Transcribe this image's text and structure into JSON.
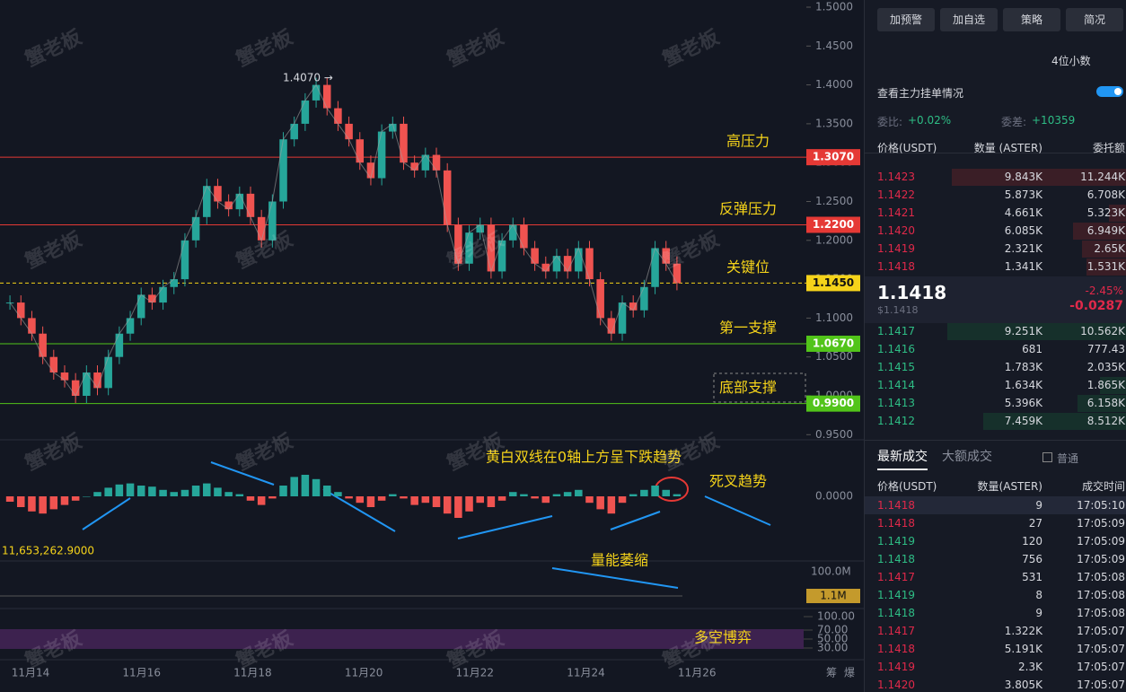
{
  "watermark": "蟹老板",
  "chart": {
    "price_ticks": [
      {
        "value": 1.5,
        "label": "1.5000"
      },
      {
        "value": 1.45,
        "label": "1.4500"
      },
      {
        "value": 1.4,
        "label": "1.4000"
      },
      {
        "value": 1.35,
        "label": "1.3500"
      },
      {
        "value": 1.3,
        "label": "1.3000"
      },
      {
        "value": 1.25,
        "label": "1.2500"
      },
      {
        "value": 1.2,
        "label": "1.2000"
      },
      {
        "value": 1.15,
        "label": "1.1500"
      },
      {
        "value": 1.1,
        "label": "1.1000"
      },
      {
        "value": 1.05,
        "label": "1.0500"
      },
      {
        "value": 1.0,
        "label": "1.0000"
      },
      {
        "value": 0.95,
        "label": "0.9500"
      }
    ],
    "levels": [
      {
        "value": 1.307,
        "label": "1.3070",
        "name": "高压力",
        "color": "#e53935"
      },
      {
        "value": 1.22,
        "label": "1.2200",
        "name": "反弹压力",
        "color": "#e53935"
      },
      {
        "value": 1.145,
        "label": "1.1450",
        "name": "关键位",
        "color": "#f5d31a"
      },
      {
        "value": 1.067,
        "label": "1.0670",
        "name": "第一支撑",
        "color": "#52c41a"
      },
      {
        "value": 0.99,
        "label": "0.9900",
        "name": "底部支撑",
        "color": "#52c41a"
      }
    ],
    "peak_label": "1.4070 →",
    "closes": [
      1.12,
      1.1,
      1.08,
      1.05,
      1.03,
      1.02,
      1.0,
      1.03,
      1.01,
      1.05,
      1.08,
      1.1,
      1.13,
      1.12,
      1.14,
      1.15,
      1.2,
      1.23,
      1.27,
      1.25,
      1.24,
      1.26,
      1.23,
      1.2,
      1.25,
      1.33,
      1.35,
      1.38,
      1.4,
      1.37,
      1.35,
      1.33,
      1.3,
      1.28,
      1.34,
      1.35,
      1.3,
      1.29,
      1.31,
      1.29,
      1.22,
      1.17,
      1.21,
      1.22,
      1.16,
      1.2,
      1.22,
      1.19,
      1.17,
      1.16,
      1.18,
      1.16,
      1.19,
      1.15,
      1.1,
      1.08,
      1.12,
      1.11,
      1.14,
      1.19,
      1.17,
      1.145
    ],
    "macd": {
      "zero": {
        "value": 0,
        "label": "0.0000"
      },
      "values": [
        -0.005,
        -0.01,
        -0.014,
        -0.016,
        -0.012,
        -0.008,
        -0.004,
        0,
        0.004,
        0.008,
        0.011,
        0.012,
        0.01,
        0.009,
        0.006,
        0.004,
        0.006,
        0.01,
        0.012,
        0.008,
        0.004,
        0.002,
        -0.004,
        -0.008,
        -0.002,
        0.01,
        0.018,
        0.02,
        0.016,
        0.01,
        0.004,
        -0.002,
        -0.006,
        -0.01,
        -0.004,
        0.002,
        -0.002,
        -0.008,
        -0.006,
        -0.01,
        -0.016,
        -0.02,
        -0.014,
        -0.006,
        -0.01,
        -0.004,
        0.004,
        0.002,
        -0.002,
        -0.006,
        0.002,
        0.004,
        0.006,
        -0.006,
        -0.012,
        -0.016,
        -0.006,
        0.002,
        0.006,
        0.01,
        0.006,
        0.002
      ],
      "note": "黄白双线在0轴上方呈下跌趋势",
      "cross": "死叉趋势"
    },
    "macd_readout": "11,653,262.9000",
    "volume": {
      "max_label": "100.0M",
      "last": "1.1M",
      "note": "量能萎缩"
    },
    "osc": {
      "ticks": [
        {
          "value": 100,
          "label": "100.00"
        },
        {
          "value": 70,
          "label": "70.00"
        },
        {
          "value": 50,
          "label": "50.00"
        },
        {
          "value": 30,
          "label": "30.00"
        }
      ],
      "note": "多空博弈"
    },
    "dates": [
      "11月14",
      "11月16",
      "11月18",
      "11月20",
      "11月22",
      "11月24",
      "11月26"
    ],
    "footer_icons": [
      "筹",
      "爆"
    ]
  },
  "panel": {
    "buttons": [
      "加预警",
      "加自选",
      "策略",
      "简况"
    ],
    "decimals": "4位小数",
    "main_orders": "查看主力挂单情况",
    "ratio_label": "委比:",
    "ratio": "+0.02%",
    "diff_label": "委差:",
    "diff": "+10359",
    "book_headers": [
      "价格(USDT)",
      "数量 (ASTER)",
      "委托额"
    ],
    "asks": [
      [
        "1.1423",
        "9.843K",
        "11.244K"
      ],
      [
        "1.1422",
        "5.873K",
        "6.708K"
      ],
      [
        "1.1421",
        "4.661K",
        "5.323K"
      ],
      [
        "1.1420",
        "6.085K",
        "6.949K"
      ],
      [
        "1.1419",
        "2.321K",
        "2.65K"
      ],
      [
        "1.1418",
        "1.341K",
        "1.531K"
      ]
    ],
    "last": "1.1418",
    "last_usd": "$1.1418",
    "change_pct": "-2.45%",
    "change": "-0.0287",
    "bids": [
      [
        "1.1417",
        "9.251K",
        "10.562K"
      ],
      [
        "1.1416",
        "681",
        "777.43"
      ],
      [
        "1.1415",
        "1.783K",
        "2.035K"
      ],
      [
        "1.1414",
        "1.634K",
        "1.865K"
      ],
      [
        "1.1413",
        "5.396K",
        "6.158K"
      ],
      [
        "1.1412",
        "7.459K",
        "8.512K"
      ]
    ],
    "tabs": [
      "最新成交",
      "大额成交"
    ],
    "normal": "普通",
    "trade_headers": [
      "价格(USDT)",
      "数量(ASTER)",
      "成交时间"
    ],
    "trades": [
      {
        "price": "1.1418",
        "qty": "9",
        "time": "17:05:10",
        "side": "sell"
      },
      {
        "price": "1.1418",
        "qty": "27",
        "time": "17:05:09",
        "side": "sell"
      },
      {
        "price": "1.1419",
        "qty": "120",
        "time": "17:05:09",
        "side": "buy"
      },
      {
        "price": "1.1418",
        "qty": "756",
        "time": "17:05:09",
        "side": "buy"
      },
      {
        "price": "1.1417",
        "qty": "531",
        "time": "17:05:08",
        "side": "sell"
      },
      {
        "price": "1.1419",
        "qty": "8",
        "time": "17:05:08",
        "side": "buy"
      },
      {
        "price": "1.1418",
        "qty": "9",
        "time": "17:05:08",
        "side": "buy"
      },
      {
        "price": "1.1417",
        "qty": "1.322K",
        "time": "17:05:07",
        "side": "sell"
      },
      {
        "price": "1.1418",
        "qty": "5.191K",
        "time": "17:05:07",
        "side": "sell"
      },
      {
        "price": "1.1419",
        "qty": "2.3K",
        "time": "17:05:07",
        "side": "sell"
      },
      {
        "price": "1.1420",
        "qty": "3.805K",
        "time": "17:05:07",
        "side": "sell"
      }
    ]
  }
}
